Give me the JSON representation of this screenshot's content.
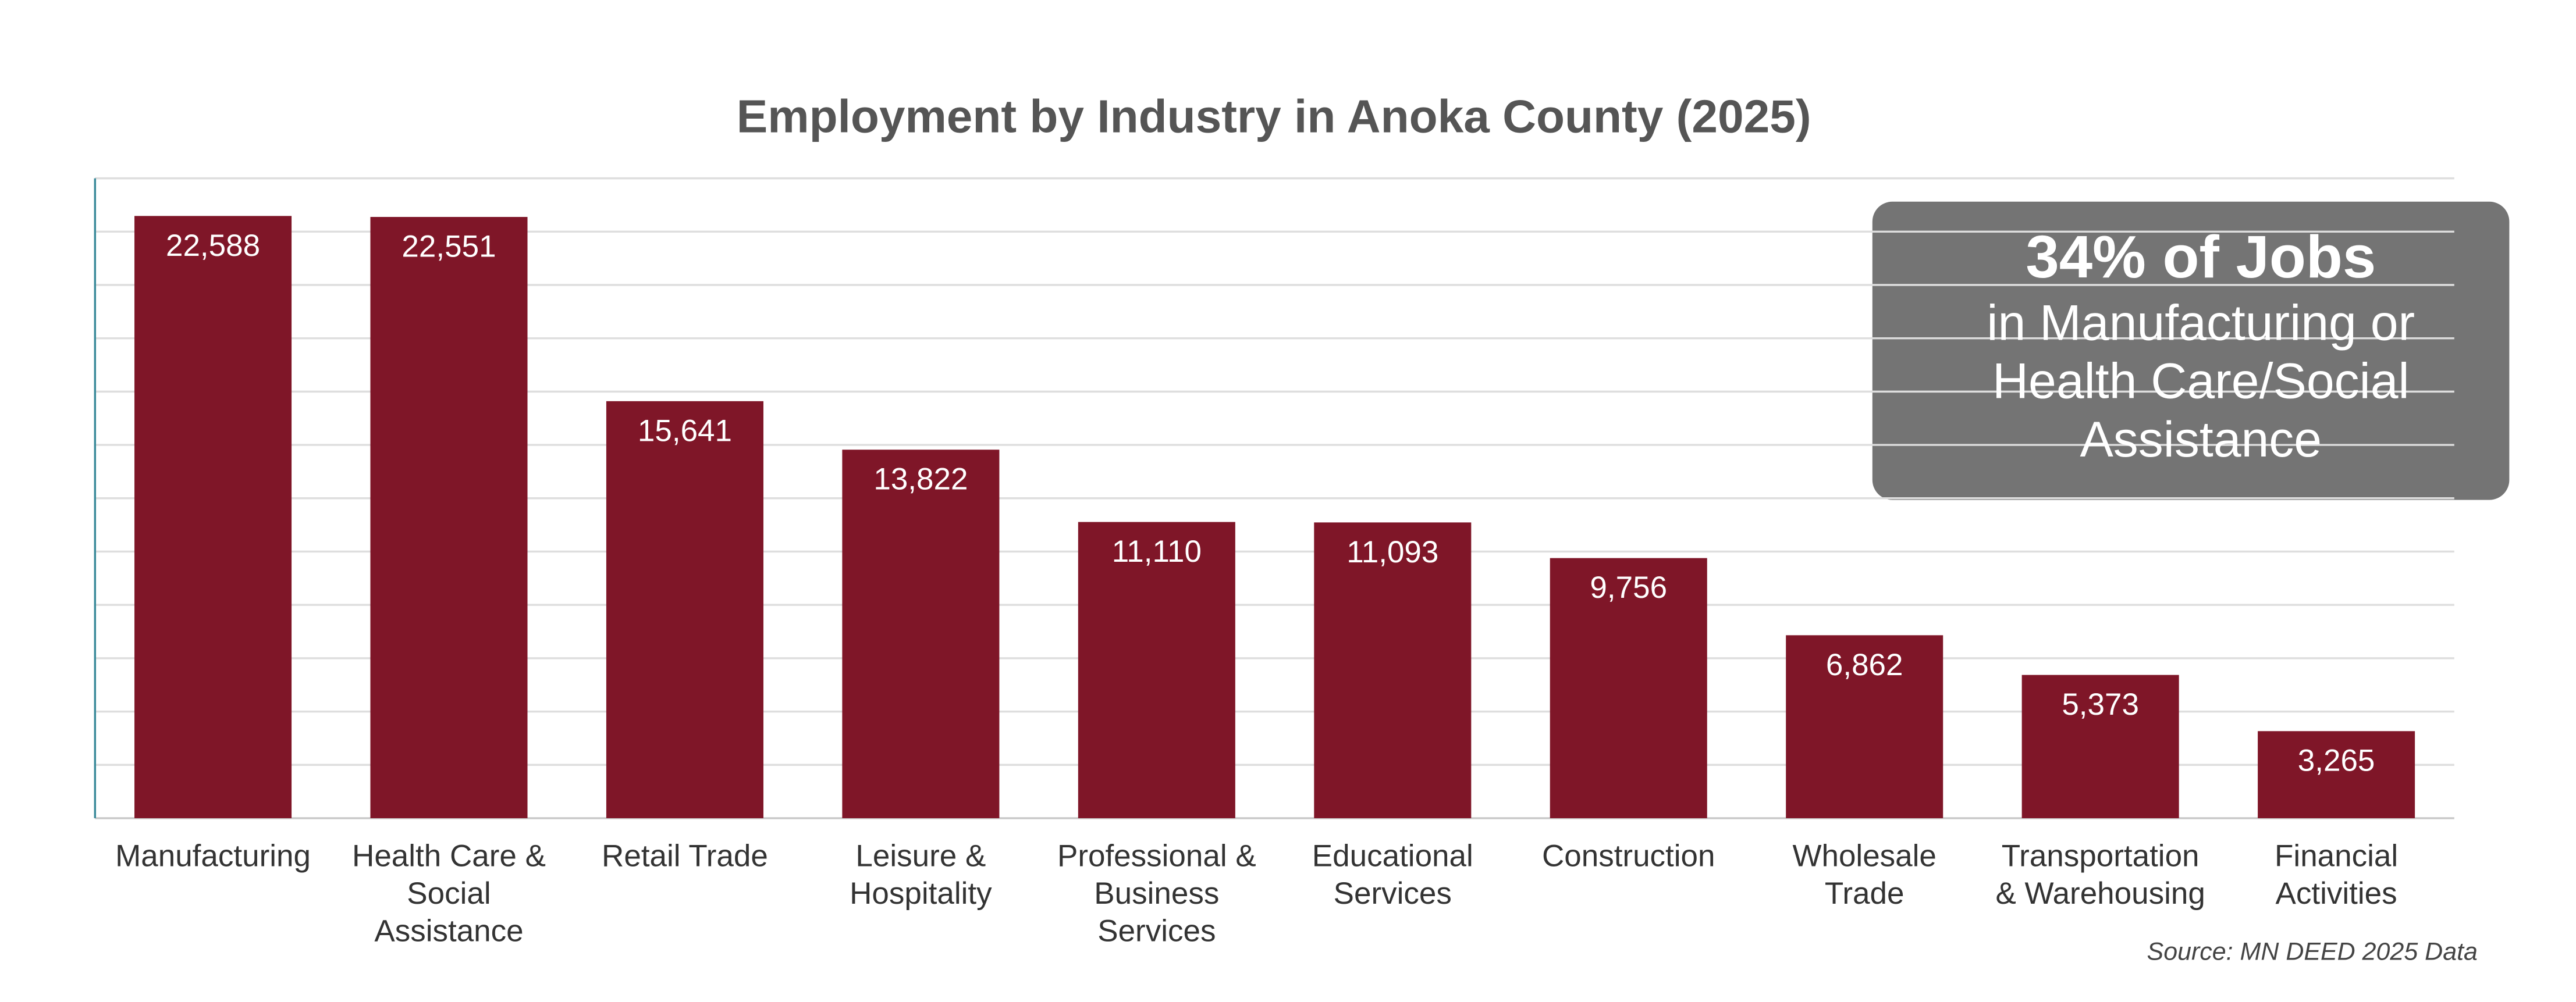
{
  "chart_data": {
    "type": "bar",
    "title": "Employment by Industry in Anoka County (2025)",
    "categories": [
      "Manufacturing",
      "Health Care &\nSocial\nAssistance",
      "Retail Trade",
      "Leisure &\nHospitality",
      "Professional &\nBusiness\nServices",
      "Educational\nServices",
      "Construction",
      "Wholesale\nTrade",
      "Transportation\n& Warehousing",
      "Financial\nActivities"
    ],
    "values": [
      22588,
      22551,
      15641,
      13822,
      11110,
      11093,
      9756,
      6862,
      5373,
      3265
    ],
    "value_labels": [
      "22,588",
      "22,551",
      "15,641",
      "13,822",
      "11,110",
      "11,093",
      "9,756",
      "6,862",
      "5,373",
      "3,265"
    ],
    "color": "#7f1628",
    "ylim": [
      0,
      24000
    ],
    "yticks": [
      0,
      2000,
      4000,
      6000,
      8000,
      10000,
      12000,
      14000,
      16000,
      18000,
      20000,
      22000,
      24000
    ],
    "grid": true,
    "annotation": {
      "headline": "34% of Jobs",
      "lines": [
        "in Manufacturing or",
        "Health Care/Social",
        "Assistance"
      ]
    },
    "source": "Source: MN DEED 2025 Data"
  }
}
